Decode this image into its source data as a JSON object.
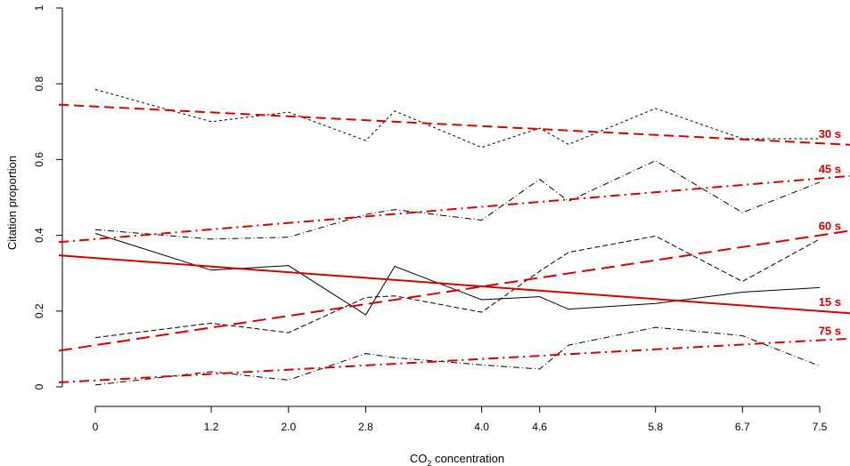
{
  "chart_data": {
    "type": "line",
    "xlabel": {
      "main": "CO",
      "sub": "2",
      "rest": " concentration"
    },
    "ylabel": "Citation proportion",
    "xlim": [
      0,
      7.5
    ],
    "ylim": [
      0,
      1
    ],
    "x_ticks": [
      0,
      1.2,
      2.0,
      2.8,
      4.0,
      4.6,
      5.8,
      6.7,
      7.5
    ],
    "x_tick_labels": [
      "0",
      "1.2",
      "2.0",
      "2.8",
      "4.0",
      "4.6",
      "5.8",
      "6.7",
      "7.5"
    ],
    "y_ticks": [
      0,
      0.2,
      0.4,
      0.6,
      0.8,
      1
    ],
    "y_tick_labels": [
      "0",
      "0.2",
      "0.4",
      "0.6",
      "0.8",
      "1"
    ],
    "fit_color": "#d40000",
    "data_color": "#000000",
    "grid": false,
    "observed": [
      {
        "label": "30 s",
        "x": [
          0,
          1.2,
          2.0,
          2.8,
          3.1,
          4.0,
          4.6,
          4.9,
          5.8,
          6.7,
          7.5
        ],
        "y": [
          0.785,
          0.7,
          0.725,
          0.65,
          0.728,
          0.632,
          0.683,
          0.64,
          0.735,
          0.655,
          0.655
        ]
      },
      {
        "label": "45 s",
        "x": [
          0,
          1.2,
          2.0,
          2.8,
          3.1,
          4.0,
          4.6,
          4.9,
          5.8,
          6.7,
          7.5
        ],
        "y": [
          0.415,
          0.39,
          0.395,
          0.455,
          0.468,
          0.44,
          0.548,
          0.49,
          0.597,
          0.46,
          0.54
        ]
      },
      {
        "label": "15 s",
        "x": [
          0,
          1.2,
          2.0,
          2.8,
          3.1,
          4.0,
          4.6,
          4.9,
          5.8,
          6.7,
          7.5
        ],
        "y": [
          0.405,
          0.308,
          0.32,
          0.19,
          0.318,
          0.23,
          0.238,
          0.205,
          0.22,
          0.25,
          0.262
        ]
      },
      {
        "label": "60 s",
        "x": [
          0,
          1.2,
          2.0,
          2.8,
          3.1,
          4.0,
          4.6,
          4.9,
          5.8,
          6.7,
          7.5
        ],
        "y": [
          0.13,
          0.168,
          0.143,
          0.236,
          0.24,
          0.197,
          0.305,
          0.355,
          0.398,
          0.278,
          0.39
        ]
      },
      {
        "label": "75 s",
        "x": [
          0,
          1.2,
          2.0,
          2.8,
          3.1,
          4.0,
          4.6,
          4.9,
          5.8,
          6.7,
          7.5
        ],
        "y": [
          0.005,
          0.04,
          0.018,
          0.088,
          0.077,
          0.058,
          0.047,
          0.11,
          0.157,
          0.135,
          0.055
        ]
      }
    ],
    "fitted": [
      {
        "label": "30 s",
        "x": [
          0,
          7.5
        ],
        "y": [
          0.74,
          0.643
        ]
      },
      {
        "label": "45 s",
        "x": [
          0,
          7.5
        ],
        "y": [
          0.39,
          0.55
        ]
      },
      {
        "label": "60 s",
        "x": [
          0,
          7.5
        ],
        "y": [
          0.11,
          0.4
        ]
      },
      {
        "label": "15 s",
        "x": [
          0,
          7.5
        ],
        "y": [
          0.34,
          0.2
        ]
      },
      {
        "label": "75 s",
        "x": [
          0,
          7.5
        ],
        "y": [
          0.017,
          0.123
        ]
      }
    ]
  }
}
